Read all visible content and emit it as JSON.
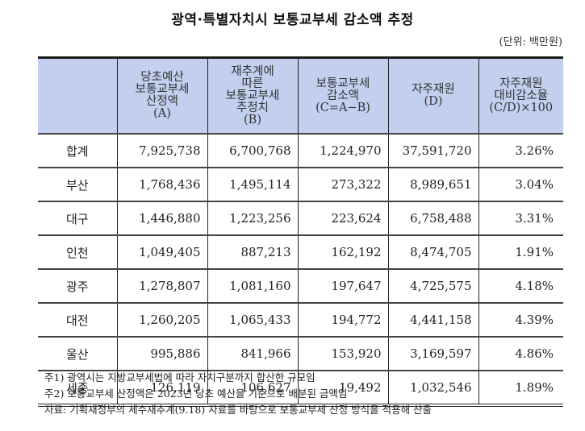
{
  "title": "광역·특별자치시 보통교부세 감소액 추정",
  "unit": "(단위: 백만원)",
  "table": {
    "headers": [
      {
        "lines": []
      },
      {
        "lines": [
          "당초예산",
          "보통교부세",
          "산정액",
          "(A)"
        ]
      },
      {
        "lines": [
          "재추계에",
          "따른",
          "보통교부세",
          "추정치",
          "(B)"
        ]
      },
      {
        "lines": [
          "보통교부세",
          "감소액",
          "(C=A−B)"
        ]
      },
      {
        "lines": [
          "자주재원",
          "(D)"
        ]
      },
      {
        "lines": [
          "자주재원",
          "대비감소율",
          "(C/D)×100"
        ]
      }
    ],
    "rows": [
      [
        "합계",
        "7,925,738",
        "6,700,768",
        "1,224,970",
        "37,591,720",
        "3.26%"
      ],
      [
        "부산",
        "1,768,436",
        "1,495,114",
        "273,322",
        "8,989,651",
        "3.04%"
      ],
      [
        "대구",
        "1,446,880",
        "1,223,256",
        "223,624",
        "6,758,488",
        "3.31%"
      ],
      [
        "인천",
        "1,049,405",
        "887,213",
        "162,192",
        "8,474,705",
        "1.91%"
      ],
      [
        "광주",
        "1,278,807",
        "1,081,160",
        "197,647",
        "4,725,575",
        "4.18%"
      ],
      [
        "대전",
        "1,260,205",
        "1,065,433",
        "194,772",
        "4,441,158",
        "4.39%"
      ],
      [
        "울산",
        "995,886",
        "841,966",
        "153,920",
        "3,169,597",
        "4.86%"
      ],
      [
        "세종",
        "126,119",
        "106,627",
        "19,492",
        "1,032,546",
        "1.89%"
      ]
    ]
  },
  "notes": [
    "주1) 광역시는 지방교부세법에 따라 자치구분까지 합산한 규모임",
    "주2) 보통교부세 산정액은 2023년 당초 예산을 기준으로 배분된 금액임",
    "자료: 기획재정부의 세수재추계(9.18) 자료를 바탕으로 보통교부세 산정 방식을 적용해 산출"
  ],
  "colors": {
    "header_bg": "#c2cfee",
    "border": "#222222"
  }
}
